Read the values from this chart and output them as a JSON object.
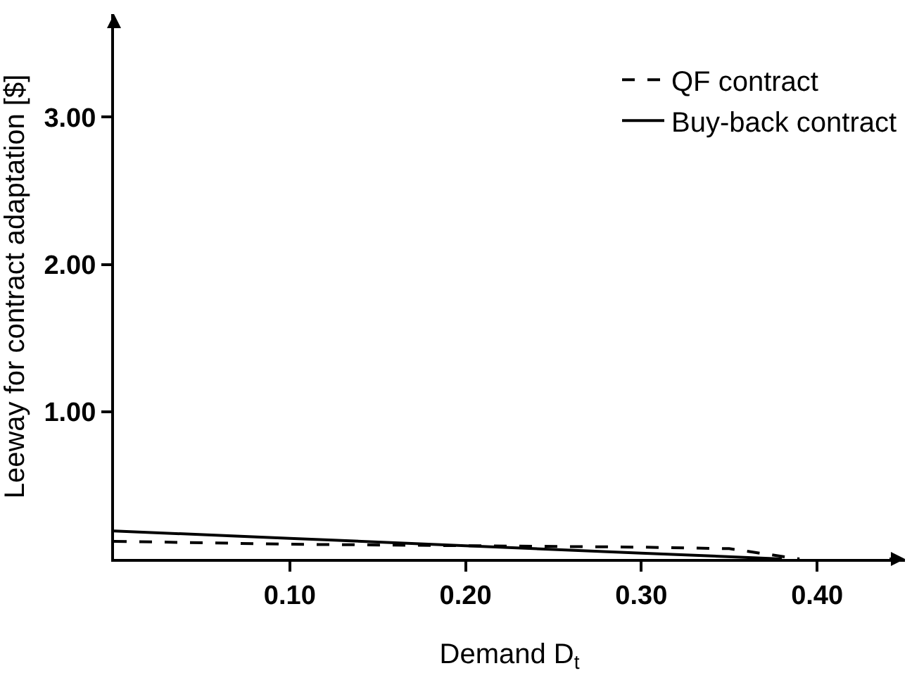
{
  "chart_data": {
    "type": "line",
    "xlabel": "Demand D$_{t}$",
    "ylabel": "Leeway for contract adaptation [$]",
    "xlim": [
      0,
      0.45
    ],
    "ylim": [
      0,
      3.7
    ],
    "xticks": [
      {
        "value": 0.1,
        "label": "0.10"
      },
      {
        "value": 0.2,
        "label": "0.20"
      },
      {
        "value": 0.3,
        "label": "0.30"
      },
      {
        "value": 0.4,
        "label": "0.40"
      }
    ],
    "yticks": [
      {
        "value": 1,
        "label": "1.00"
      },
      {
        "value": 2,
        "label": "2.00"
      },
      {
        "value": 3,
        "label": "3.00"
      }
    ],
    "series": [
      {
        "name": "QF contract",
        "color": "#000000",
        "line_style": "dashed",
        "x": [
          0,
          0.1,
          0.2,
          0.3,
          0.35,
          0.39
        ],
        "values": [
          0.12,
          0.1,
          0.09,
          0.08,
          0.07,
          0
        ]
      },
      {
        "name": "Buy-back contract",
        "color": "#000000",
        "line_style": "solid",
        "x": [
          0,
          0.1,
          0.2,
          0.3,
          0.38
        ],
        "values": [
          0.19,
          0.14,
          0.09,
          0.04,
          0
        ]
      }
    ],
    "legend": "top right",
    "marker": "none"
  }
}
